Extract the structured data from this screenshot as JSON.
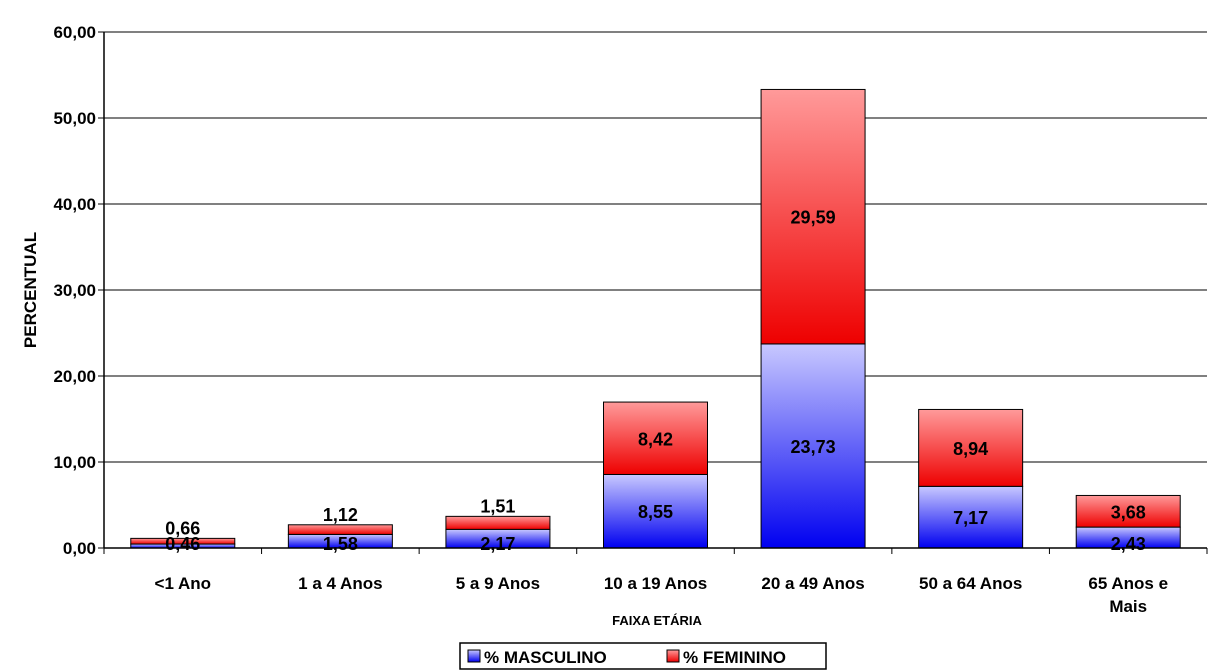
{
  "chart_data": {
    "type": "bar",
    "stacked": true,
    "categories": [
      "<1 Ano",
      "1 a 4 Anos",
      "5 a 9 Anos",
      "10 a 19 Anos",
      "20 a 49 Anos",
      "50 a 64 Anos",
      "65 Anos e Mais"
    ],
    "series": [
      {
        "name": "% MASCULINO",
        "values": [
          0.46,
          1.58,
          2.17,
          8.55,
          23.73,
          7.17,
          2.43
        ],
        "labels": [
          "0,46",
          "1,58",
          "2,17",
          "8,55",
          "23,73",
          "7,17",
          "2,43"
        ],
        "colors": {
          "light": "#c8c8ff",
          "dark": "#0000f0"
        }
      },
      {
        "name": "% FEMININO",
        "values": [
          0.66,
          1.12,
          1.51,
          8.42,
          29.59,
          8.94,
          3.68
        ],
        "labels": [
          "0,66",
          "1,12",
          "1,51",
          "8,42",
          "29,59",
          "8,94",
          "3,68"
        ],
        "colors": {
          "light": "#ff9a9a",
          "dark": "#ee0000"
        }
      }
    ],
    "xlabel": "FAIXA ETÁRIA",
    "ylabel": "PERCENTUAL",
    "ylim": [
      0,
      60
    ],
    "yticks": [
      0,
      10,
      20,
      30,
      40,
      50,
      60
    ],
    "ytick_labels": [
      "0,00",
      "10,00",
      "20,00",
      "30,00",
      "40,00",
      "50,00",
      "60,00"
    ],
    "grid": true,
    "legend_position": "bottom"
  }
}
